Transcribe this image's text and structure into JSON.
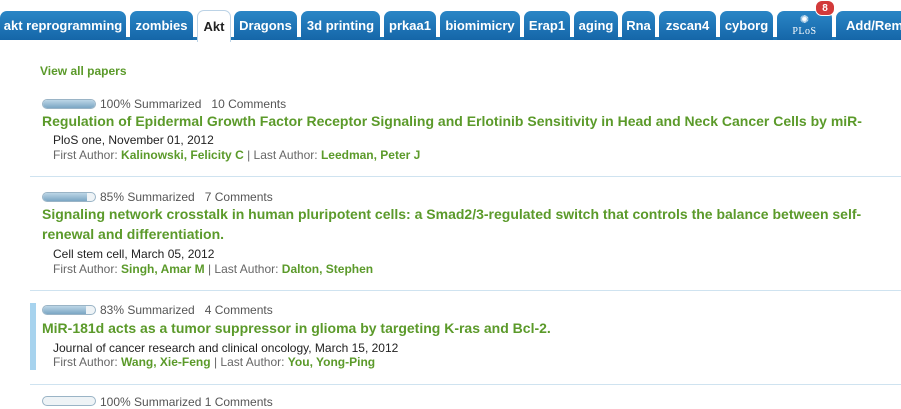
{
  "tabs": [
    {
      "label": "akt reprogramming"
    },
    {
      "label": "zombies"
    },
    {
      "label": "Akt"
    },
    {
      "label": "Dragons"
    },
    {
      "label": "3d printing"
    },
    {
      "label": "prkaa1"
    },
    {
      "label": "biomimicry"
    },
    {
      "label": "Erap1"
    },
    {
      "label": "aging"
    },
    {
      "label": "Rna"
    },
    {
      "label": "zscan4"
    },
    {
      "label": "cyborg"
    },
    {
      "label": "PLoS",
      "badge": "8"
    },
    {
      "label": "Add/Rem"
    }
  ],
  "view_all": "View all papers",
  "labels": {
    "first_author": "First Author:",
    "last_author": "Last Author:",
    "separator": "|"
  },
  "papers": [
    {
      "progress": 1.0,
      "summarized": "100% Summarized",
      "comments": "10 Comments",
      "title": "Regulation of Epidermal Growth Factor Receptor Signaling and Erlotinib Sensitivity in Head and Neck Cancer Cells by miR-",
      "journal": "PloS one, November 01, 2012",
      "first_author": "Kalinowski, Felicity C",
      "last_author": "Leedman, Peter J"
    },
    {
      "progress": 0.85,
      "summarized": "85% Summarized",
      "comments": "7 Comments",
      "title": "Signaling network crosstalk in human pluripotent cells: a Smad2/3-regulated switch that controls the balance between self-renewal and differentiation.",
      "journal": "Cell stem cell, March 05, 2012",
      "first_author": "Singh, Amar M",
      "last_author": "Dalton, Stephen"
    },
    {
      "progress": 0.83,
      "summarized": "83% Summarized",
      "comments": "4 Comments",
      "title": "MiR-181d acts as a tumor suppressor in glioma by targeting K-ras and Bcl-2.",
      "journal": "Journal of cancer research and clinical oncology, March 15, 2012",
      "first_author": "Wang, Xie-Feng",
      "last_author": "You, Yong-Ping"
    }
  ],
  "partial_row": {
    "progress": 1.0,
    "text": "100% Summarized  1 Comments"
  },
  "colors": {
    "tab": "#1b73b3",
    "link_green": "#5b9a2a",
    "badge": "#d23a3a",
    "selected_bar": "#a7d3ee"
  }
}
